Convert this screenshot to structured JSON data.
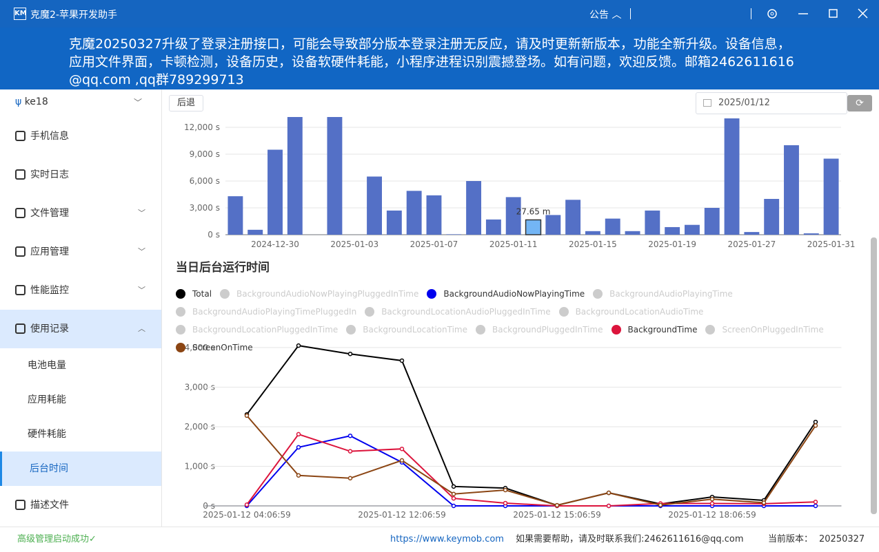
{
  "app": {
    "logo": "KM",
    "title": "克魔2-苹果开发助手",
    "notice": "公告"
  },
  "banner": "克魔20250327升级了登录注册接口，可能会导致部分版本登录注册无反应，请及时更新新版本，功能全新升级。设备信息，应用文件界面，卡顿检测，设备历史，设备软硬件耗能，小程序进程识别震撼登场。如有问题，欢迎反馈。邮箱2462611616@qq.com ,qq群789299713",
  "sidebar": {
    "device": "ke18",
    "menu": [
      {
        "label": "手机信息"
      },
      {
        "label": "实时日志"
      },
      {
        "label": "文件管理"
      },
      {
        "label": "应用管理"
      },
      {
        "label": "性能监控"
      },
      {
        "label": "使用记录",
        "children": [
          "电池电量",
          "应用耗能",
          "硬件耗能",
          "后台时间"
        ]
      },
      {
        "label": "描述文件"
      }
    ]
  },
  "toolbar": {
    "back": "后退",
    "date": "2025/01/12"
  },
  "chart_data": [
    {
      "type": "bar",
      "categories": [
        null,
        null,
        "2024-12-30",
        null,
        null,
        null,
        "2025-01-03",
        null,
        null,
        null,
        "2025-01-07",
        null,
        null,
        null,
        "2025-01-11",
        null,
        null,
        null,
        "2025-01-15",
        null,
        null,
        null,
        "2025-01-19",
        null,
        null,
        null,
        "2025-01-27",
        null,
        null,
        null,
        "2025-01-31"
      ],
      "values": [
        4300,
        550,
        9500,
        13500,
        0,
        13500,
        0,
        6500,
        2700,
        4900,
        4400,
        50,
        6000,
        1700,
        4200,
        1659,
        2200,
        3900,
        400,
        1800,
        400,
        2700,
        850,
        1100,
        3000,
        13000,
        300,
        4000,
        10000,
        150,
        8500
      ],
      "value_labels": [
        null,
        null,
        null,
        null,
        null,
        null,
        null,
        null,
        null,
        null,
        null,
        null,
        null,
        null,
        null,
        "27.65 m",
        null,
        null,
        null,
        null,
        null,
        null,
        null,
        null,
        null,
        null,
        null,
        null,
        null,
        null,
        null
      ],
      "color": "#5470c6",
      "ylim": [
        0,
        12000
      ],
      "yticks": [
        {
          "value": 0,
          "label": "0 s"
        },
        {
          "value": 3000,
          "label": "3,000 s"
        },
        {
          "value": 6000,
          "label": "6,000 s"
        },
        {
          "value": 9000,
          "label": "9,000 s"
        },
        {
          "value": 12000,
          "label": "12,000 s"
        }
      ],
      "grid": true
    },
    {
      "type": "line",
      "title": "当日后台运行时间",
      "categories": [
        "2025-01-12 04:06:59",
        null,
        null,
        "2025-01-12 12:06:59",
        null,
        null,
        "2025-01-12 15:06:59",
        null,
        null,
        "2025-01-12 18:06:59",
        null,
        null
      ],
      "series": [
        {
          "name": "Total",
          "color": "#000000",
          "values": [
            2310,
            4050,
            3840,
            3670,
            490,
            450,
            15,
            330,
            50,
            225,
            140,
            2120
          ]
        },
        {
          "name": "BackgroundAudioNowPlayingPluggedInTime",
          "color": "#cccccc",
          "visible": false
        },
        {
          "name": "BackgroundAudioNowPlayingTime",
          "color": "#0000ee",
          "values": [
            0,
            1480,
            1770,
            1100,
            0,
            0,
            0,
            0,
            0,
            0,
            0,
            0
          ]
        },
        {
          "name": "BackgroundAudioPlayingTime",
          "color": "#cccccc",
          "visible": false
        },
        {
          "name": "BackgroundAudioPlayingTimePluggedIn",
          "color": "#cccccc",
          "visible": false
        },
        {
          "name": "BackgroundLocationAudioPluggedInTime",
          "color": "#cccccc",
          "visible": false
        },
        {
          "name": "BackgroundLocationAudioTime",
          "color": "#cccccc",
          "visible": false
        },
        {
          "name": "BackgroundLocationPluggedInTime",
          "color": "#cccccc",
          "visible": false
        },
        {
          "name": "BackgroundLocationTime",
          "color": "#cccccc",
          "visible": false
        },
        {
          "name": "BackgroundPluggedInTime",
          "color": "#cccccc",
          "visible": false
        },
        {
          "name": "BackgroundTime",
          "color": "#dc143c",
          "values": [
            30,
            1810,
            1380,
            1440,
            190,
            70,
            0,
            0,
            60,
            60,
            55,
            100
          ]
        },
        {
          "name": "ScreenOnPluggedInTime",
          "color": "#cccccc",
          "visible": false
        },
        {
          "name": "ScreenOnTime",
          "color": "#8b4513",
          "values": [
            2280,
            770,
            700,
            1150,
            300,
            400,
            15,
            330,
            20,
            170,
            80,
            2030
          ]
        }
      ],
      "ylim": [
        0,
        4000
      ],
      "yticks": [
        {
          "value": 0,
          "label": "0 s"
        },
        {
          "value": 1000,
          "label": "1,000 s"
        },
        {
          "value": 2000,
          "label": "2,000 s"
        },
        {
          "value": 3000,
          "label": "3,000 s"
        },
        {
          "value": 4000,
          "label": "4,000 s"
        }
      ],
      "grid": true
    }
  ],
  "footer": {
    "status": "高级管理启动成功✓",
    "url": "https://www.keymob.com",
    "help": "如果需要帮助，请及时联系我们:2462611616@qq.com",
    "version_label": "当前版本：",
    "version": "20250327"
  }
}
